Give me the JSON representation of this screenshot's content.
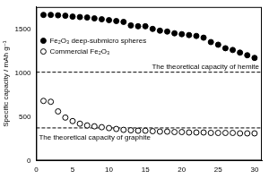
{
  "chart_data": {
    "type": "scatter",
    "y_label": "Specific capacity / mAh g⁻¹",
    "x": [
      1,
      2,
      3,
      4,
      5,
      6,
      7,
      8,
      9,
      10,
      11,
      12,
      13,
      14,
      15,
      16,
      17,
      18,
      19,
      20,
      21,
      22,
      23,
      24,
      25,
      26,
      27,
      28,
      29,
      30
    ],
    "series": [
      {
        "name": "Fe₂O₃ deep-submicro spheres",
        "color": "#000000",
        "marker": "filled_circle",
        "values": [
          1660,
          1660,
          1655,
          1650,
          1640,
          1635,
          1630,
          1620,
          1610,
          1600,
          1590,
          1580,
          1540,
          1530,
          1530,
          1500,
          1480,
          1470,
          1450,
          1440,
          1430,
          1420,
          1400,
          1350,
          1320,
          1280,
          1260,
          1230,
          1200,
          1170
        ]
      },
      {
        "name": "Commercial Fe₂O₃",
        "color": "#000000",
        "marker": "open_circle",
        "values": [
          680,
          670,
          560,
          490,
          450,
          420,
          400,
          390,
          380,
          370,
          360,
          350,
          345,
          340,
          340,
          335,
          330,
          330,
          325,
          325,
          320,
          320,
          320,
          315,
          315,
          315,
          315,
          310,
          310,
          310
        ]
      }
    ],
    "reference_lines": [
      {
        "value": 1007,
        "label": "The theoretical capacity of hemite",
        "line_style": "dashed",
        "color": "#000000"
      },
      {
        "value": 372,
        "label": "The theoretical capacity of graphite",
        "line_style": "dashed",
        "color": "#000000"
      }
    ],
    "xlim": [
      0,
      31
    ],
    "xticks": [
      0,
      5,
      10,
      15,
      20,
      25,
      30
    ],
    "ylim": [
      0,
      1750
    ],
    "yticks": [
      0,
      500,
      1000,
      1500
    ],
    "grid": false,
    "legend": "upper left"
  }
}
